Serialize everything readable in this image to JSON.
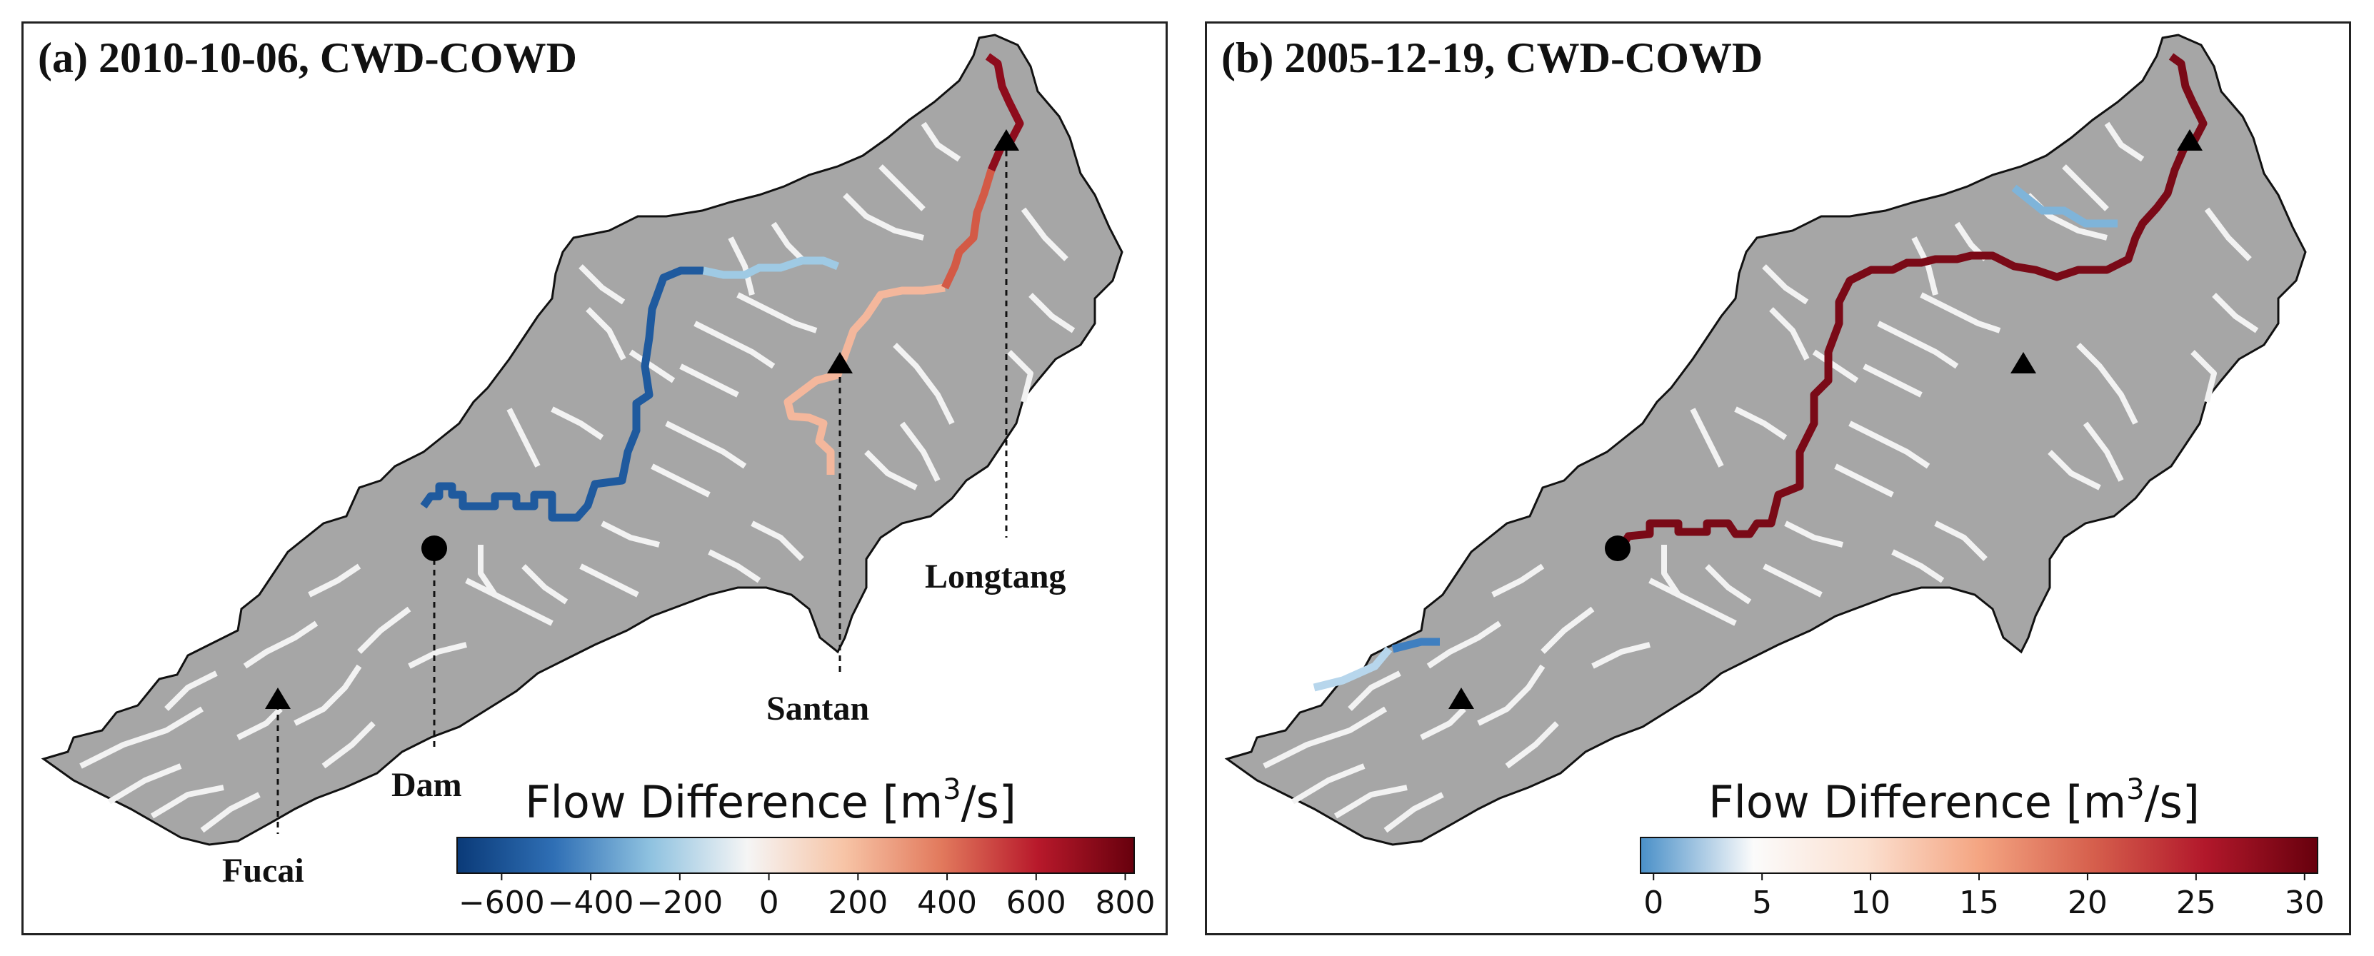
{
  "panels": [
    {
      "id": "a",
      "title": "(a) 2010-10-06, CWD-COWD",
      "sites": [
        {
          "name": "Longtang",
          "symbol": "triangle"
        },
        {
          "name": "Santan",
          "symbol": "triangle"
        },
        {
          "name": "Dam",
          "symbol": "circle"
        },
        {
          "name": "Fucai",
          "symbol": "triangle"
        }
      ],
      "colorbar": {
        "title_prefix": "Flow Difference [m",
        "title_sup": "3",
        "title_suffix": "/s]",
        "min": -700,
        "max": 820,
        "ticks": [
          "−600",
          "−400",
          "−200",
          "0",
          "200",
          "400",
          "600",
          "800"
        ],
        "tick_values": [
          -600,
          -400,
          -200,
          0,
          200,
          400,
          600,
          800
        ],
        "colors": [
          "#0a3a78",
          "#2f6fb5",
          "#8fc2e0",
          "#f5f5f5",
          "#f7c4a6",
          "#e27a5d",
          "#b8192b",
          "#67000d"
        ]
      }
    },
    {
      "id": "b",
      "title": "(b) 2005-12-19, CWD-COWD",
      "sites": [
        {
          "name": "",
          "symbol": "triangle"
        },
        {
          "name": "",
          "symbol": "triangle"
        },
        {
          "name": "",
          "symbol": "circle"
        },
        {
          "name": "",
          "symbol": "triangle"
        }
      ],
      "colorbar": {
        "title_prefix": "Flow Difference [m",
        "title_sup": "3",
        "title_suffix": "/s]",
        "min": -0.6,
        "max": 30.6,
        "ticks": [
          "0",
          "5",
          "10",
          "15",
          "20",
          "25",
          "30"
        ],
        "tick_values": [
          0,
          5,
          10,
          15,
          20,
          25,
          30
        ],
        "colors": [
          "#4a90c8",
          "#fbfbfb",
          "#fbe0d0",
          "#f4a582",
          "#d6604d",
          "#b2182b",
          "#67000d"
        ]
      }
    }
  ],
  "colors": {
    "catchment_fill": "#a6a6a6",
    "catchment_edge": "#111111",
    "minor_river": "#f2f2f2",
    "marker": "#000000"
  }
}
